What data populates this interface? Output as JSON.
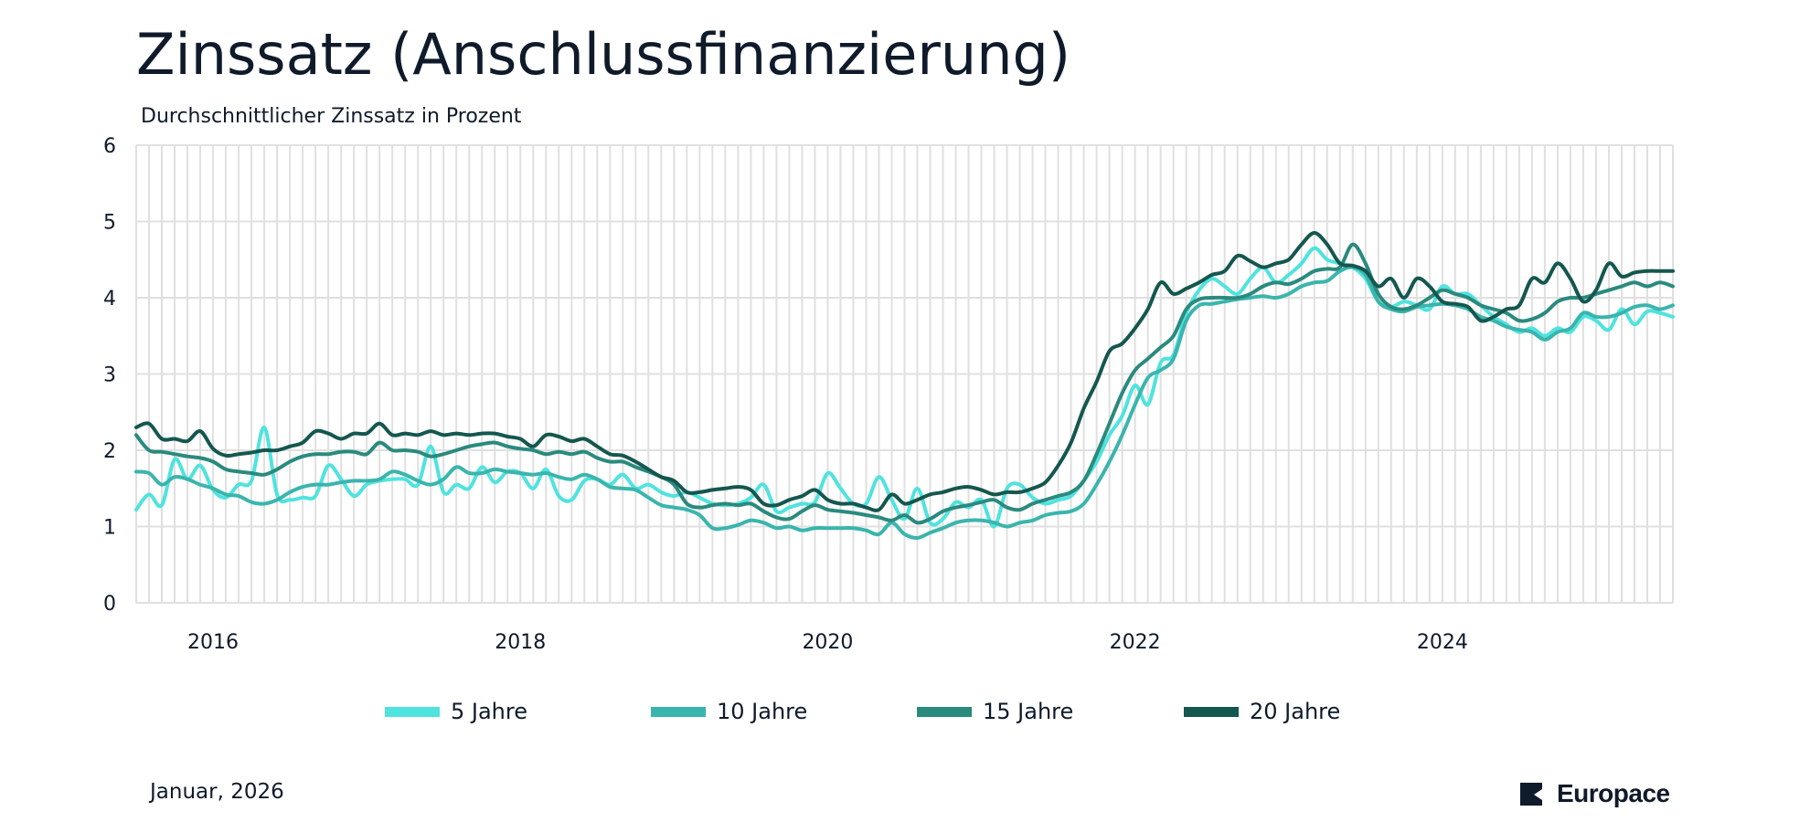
{
  "header": {
    "title": "Zinssatz (Anschlussfinanzierung)",
    "subtitle": "Durchschnittlicher Zinssatz in Prozent"
  },
  "footer": {
    "date": "Januar, 2026",
    "logo_text": "Europace"
  },
  "chart_data": {
    "type": "line",
    "title": "Zinssatz (Anschlussfinanzierung)",
    "subtitle": "Durchschnittlicher Zinssatz in Prozent",
    "xlabel": "",
    "ylabel": "",
    "x_start": "2015-07",
    "x_frequency": "monthly",
    "x_ticks": [
      {
        "label": "2016",
        "month_index": 6
      },
      {
        "label": "2018",
        "month_index": 30
      },
      {
        "label": "2020",
        "month_index": 54
      },
      {
        "label": "2022",
        "month_index": 78
      },
      {
        "label": "2024",
        "month_index": 102
      }
    ],
    "x_range_months": [
      0,
      120
    ],
    "ylim": [
      0,
      6
    ],
    "y_ticks": [
      "0",
      "1",
      "2",
      "3",
      "4",
      "5",
      "6"
    ],
    "grid": true,
    "legend_position": "bottom",
    "series": [
      {
        "name": "5 Jahre",
        "color": "#4fe3df",
        "values": [
          1.22,
          1.42,
          1.28,
          1.88,
          1.62,
          1.8,
          1.48,
          1.38,
          1.55,
          1.6,
          2.3,
          1.42,
          1.35,
          1.38,
          1.4,
          1.8,
          1.62,
          1.4,
          1.55,
          1.6,
          1.62,
          1.62,
          1.55,
          2.05,
          1.45,
          1.55,
          1.5,
          1.78,
          1.58,
          1.72,
          1.7,
          1.5,
          1.75,
          1.4,
          1.35,
          1.6,
          1.62,
          1.55,
          1.68,
          1.5,
          1.55,
          1.45,
          1.4,
          1.45,
          1.38,
          1.3,
          1.28,
          1.3,
          1.38,
          1.55,
          1.2,
          1.25,
          1.3,
          1.32,
          1.7,
          1.5,
          1.3,
          1.3,
          1.65,
          1.35,
          1.1,
          1.5,
          1.05,
          1.1,
          1.32,
          1.25,
          1.35,
          1.0,
          1.5,
          1.55,
          1.38,
          1.3,
          1.35,
          1.4,
          1.6,
          1.85,
          2.2,
          2.45,
          2.85,
          2.6,
          3.15,
          3.25,
          3.8,
          4.1,
          4.25,
          4.15,
          4.05,
          4.25,
          4.4,
          4.2,
          4.3,
          4.45,
          4.65,
          4.5,
          4.45,
          4.4,
          4.25,
          3.95,
          3.88,
          3.95,
          3.9,
          3.85,
          4.15,
          4.05,
          4.05,
          3.9,
          3.75,
          3.65,
          3.55,
          3.6,
          3.5,
          3.6,
          3.55,
          3.75,
          3.7,
          3.58,
          3.85,
          3.65,
          3.82,
          3.8,
          3.75
        ]
      },
      {
        "name": "10 Jahre",
        "color": "#3ab5ad",
        "values": [
          1.72,
          1.7,
          1.55,
          1.65,
          1.62,
          1.55,
          1.5,
          1.42,
          1.4,
          1.32,
          1.3,
          1.35,
          1.45,
          1.52,
          1.55,
          1.55,
          1.58,
          1.6,
          1.6,
          1.62,
          1.72,
          1.68,
          1.6,
          1.55,
          1.62,
          1.78,
          1.7,
          1.7,
          1.75,
          1.72,
          1.7,
          1.68,
          1.7,
          1.65,
          1.62,
          1.68,
          1.62,
          1.52,
          1.5,
          1.48,
          1.38,
          1.28,
          1.25,
          1.22,
          1.15,
          0.98,
          0.98,
          1.02,
          1.08,
          1.05,
          0.98,
          1.0,
          0.95,
          0.98,
          0.98,
          0.98,
          0.98,
          0.95,
          0.9,
          1.05,
          0.9,
          0.85,
          0.92,
          0.98,
          1.05,
          1.08,
          1.08,
          1.05,
          1.0,
          1.05,
          1.08,
          1.15,
          1.18,
          1.2,
          1.3,
          1.55,
          1.85,
          2.2,
          2.6,
          2.95,
          3.05,
          3.2,
          3.7,
          3.9,
          3.92,
          3.95,
          3.98,
          4.0,
          4.02,
          4.0,
          4.05,
          4.15,
          4.2,
          4.22,
          4.35,
          4.4,
          4.3,
          3.95,
          3.85,
          3.82,
          3.88,
          3.9,
          3.92,
          3.9,
          3.85,
          3.75,
          3.7,
          3.62,
          3.58,
          3.55,
          3.45,
          3.55,
          3.6,
          3.8,
          3.75,
          3.75,
          3.8,
          3.88,
          3.9,
          3.85,
          3.9
        ]
      },
      {
        "name": "15 Jahre",
        "color": "#2a8a7e",
        "values": [
          2.2,
          2.0,
          1.98,
          1.95,
          1.92,
          1.9,
          1.85,
          1.75,
          1.72,
          1.7,
          1.68,
          1.75,
          1.85,
          1.92,
          1.95,
          1.95,
          1.98,
          1.98,
          1.95,
          2.1,
          2.0,
          2.0,
          1.98,
          1.92,
          1.95,
          2.0,
          2.05,
          2.08,
          2.1,
          2.05,
          2.02,
          2.0,
          1.95,
          1.98,
          1.95,
          1.98,
          1.9,
          1.85,
          1.85,
          1.78,
          1.72,
          1.65,
          1.55,
          1.3,
          1.25,
          1.28,
          1.3,
          1.28,
          1.3,
          1.2,
          1.12,
          1.1,
          1.2,
          1.28,
          1.22,
          1.2,
          1.18,
          1.15,
          1.12,
          1.08,
          1.15,
          1.05,
          1.1,
          1.2,
          1.25,
          1.28,
          1.32,
          1.35,
          1.25,
          1.22,
          1.3,
          1.35,
          1.4,
          1.45,
          1.6,
          1.95,
          2.35,
          2.75,
          3.05,
          3.2,
          3.35,
          3.5,
          3.85,
          3.98,
          4.0,
          4.0,
          4.0,
          4.05,
          4.15,
          4.2,
          4.18,
          4.25,
          4.35,
          4.38,
          4.4,
          4.7,
          4.45,
          4.05,
          3.88,
          3.85,
          3.9,
          4.0,
          4.1,
          4.05,
          4.0,
          3.9,
          3.85,
          3.8,
          3.7,
          3.72,
          3.8,
          3.95,
          4.0,
          4.0,
          4.05,
          4.1,
          4.15,
          4.2,
          4.15,
          4.2,
          4.15
        ]
      },
      {
        "name": "20 Jahre",
        "color": "#14574e",
        "values": [
          2.3,
          2.35,
          2.15,
          2.15,
          2.12,
          2.25,
          2.02,
          1.93,
          1.95,
          1.97,
          2.0,
          2.0,
          2.05,
          2.1,
          2.25,
          2.22,
          2.15,
          2.22,
          2.22,
          2.35,
          2.2,
          2.22,
          2.2,
          2.25,
          2.2,
          2.22,
          2.2,
          2.22,
          2.22,
          2.18,
          2.15,
          2.05,
          2.2,
          2.18,
          2.12,
          2.15,
          2.05,
          1.95,
          1.93,
          1.85,
          1.75,
          1.65,
          1.6,
          1.45,
          1.45,
          1.48,
          1.5,
          1.52,
          1.48,
          1.3,
          1.28,
          1.35,
          1.4,
          1.48,
          1.35,
          1.3,
          1.3,
          1.25,
          1.22,
          1.42,
          1.3,
          1.35,
          1.42,
          1.45,
          1.5,
          1.52,
          1.48,
          1.42,
          1.45,
          1.45,
          1.5,
          1.58,
          1.8,
          2.1,
          2.55,
          2.9,
          3.3,
          3.4,
          3.6,
          3.85,
          4.2,
          4.05,
          4.12,
          4.2,
          4.3,
          4.35,
          4.55,
          4.48,
          4.4,
          4.45,
          4.5,
          4.7,
          4.85,
          4.7,
          4.45,
          4.42,
          4.35,
          4.15,
          4.25,
          4.0,
          4.25,
          4.15,
          3.95,
          3.92,
          3.88,
          3.7,
          3.75,
          3.85,
          3.9,
          4.25,
          4.2,
          4.45,
          4.25,
          3.95,
          4.1,
          4.45,
          4.28,
          4.33,
          4.35,
          4.35,
          4.35
        ]
      }
    ]
  }
}
